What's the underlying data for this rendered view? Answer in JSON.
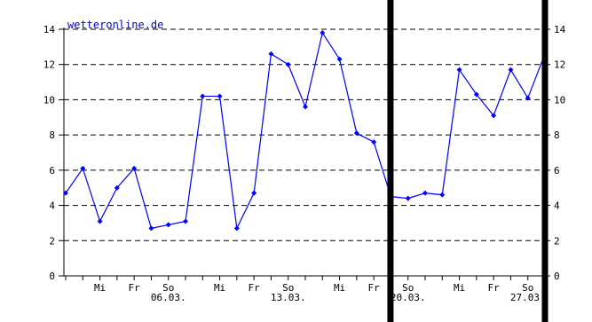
{
  "colors": {
    "background": "#ffffff",
    "axes": "#000000",
    "grid": "#000000",
    "line": "#0000ff",
    "markers": "#0000ff",
    "watermark": "#0000cc",
    "markers_bars": "#000000"
  },
  "watermark": "wetteronline.de",
  "chart_data": {
    "type": "line",
    "title": "",
    "xlabel": "",
    "ylabel": "",
    "ylim": [
      0,
      14
    ],
    "y_ticks": [
      0,
      2,
      4,
      6,
      8,
      10,
      12,
      14
    ],
    "y_axes": [
      "left",
      "right"
    ],
    "grid": "horizontal dashed",
    "x_domain": [
      0,
      28
    ],
    "weekday_labels": [
      {
        "label": "Mi",
        "x": 2
      },
      {
        "label": "Fr",
        "x": 4
      },
      {
        "label": "So",
        "x": 6
      },
      {
        "label": "Mi",
        "x": 9
      },
      {
        "label": "Fr",
        "x": 11
      },
      {
        "label": "So",
        "x": 13
      },
      {
        "label": "Mi",
        "x": 16
      },
      {
        "label": "Fr",
        "x": 18
      },
      {
        "label": "So",
        "x": 20
      },
      {
        "label": "Mi",
        "x": 23
      },
      {
        "label": "Fr",
        "x": 25
      },
      {
        "label": "So",
        "x": 27
      }
    ],
    "date_labels": [
      {
        "label": "06.03.",
        "x": 6
      },
      {
        "label": "13.03.",
        "x": 13
      },
      {
        "label": "20.03.",
        "x": 20
      },
      {
        "label": "27.03.",
        "x": 27
      }
    ],
    "vertical_markers": [
      19,
      28
    ],
    "series": [
      {
        "x": [
          0,
          1,
          2,
          3,
          4,
          5,
          6,
          7,
          8,
          9,
          10,
          11,
          12,
          13,
          14,
          15,
          16,
          17,
          18,
          19,
          20,
          21,
          22,
          23,
          24,
          25,
          26,
          27,
          28
        ],
        "values": [
          4.7,
          6.1,
          3.1,
          5.0,
          6.1,
          2.7,
          2.9,
          3.1,
          10.2,
          10.2,
          2.7,
          4.7,
          12.6,
          12.0,
          9.6,
          13.8,
          12.3,
          8.1,
          7.6,
          4.5,
          4.4,
          4.7,
          4.6,
          11.7,
          10.3,
          9.1,
          11.7,
          10.1,
          12.6
        ]
      }
    ]
  }
}
